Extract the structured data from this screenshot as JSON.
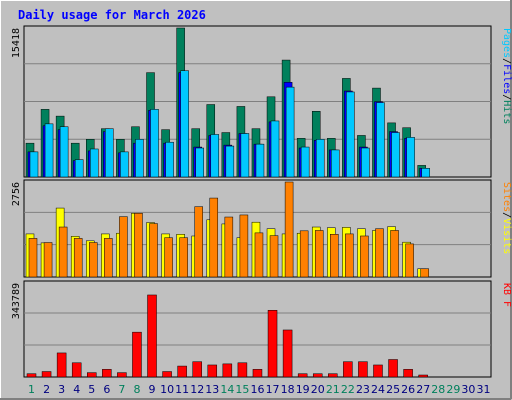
{
  "title": "Daily usage for March 2026",
  "colors": {
    "background": "#c0c0c0",
    "frame": "#ffffff",
    "title": "#0000ff",
    "hits": "#00805c",
    "files": "#0000ff",
    "pages": "#00c8ff",
    "visits": "#ffff00",
    "sites": "#ff8000",
    "kbytes": "#ff0000",
    "weekday_label": "#000080",
    "weekend_label": "#00805c"
  },
  "chart_data": {
    "type": "bar",
    "x": [
      "1",
      "2",
      "3",
      "4",
      "5",
      "6",
      "7",
      "8",
      "9",
      "10",
      "11",
      "12",
      "13",
      "14",
      "15",
      "16",
      "17",
      "18",
      "19",
      "20",
      "21",
      "22",
      "23",
      "24",
      "25",
      "26",
      "27",
      "28",
      "29",
      "30",
      "31"
    ],
    "weekend_days": [
      "1",
      "7",
      "8",
      "14",
      "15",
      "21",
      "22",
      "28",
      "29"
    ],
    "panels": [
      {
        "id": "hits-files-pages",
        "ymax_label": "15418",
        "ylim": [
          0,
          15418
        ],
        "legend": [
          {
            "text": "Pages",
            "key": "pages"
          },
          {
            "text": "Files",
            "key": "files"
          },
          {
            "text": "Hits",
            "key": "hits"
          }
        ],
        "series": [
          {
            "name": "Hits",
            "key": "hits",
            "values": [
              3500,
              7000,
              6300,
              3500,
              3900,
              5000,
              3900,
              5200,
              10800,
              4900,
              15418,
              5000,
              7500,
              4600,
              7300,
              5000,
              8300,
              12100,
              4000,
              6800,
              4000,
              10200,
              4300,
              9200,
              5600,
              5100,
              1200,
              0,
              0,
              0,
              0
            ]
          },
          {
            "name": "Files",
            "key": "files",
            "values": [
              2600,
              5300,
              4900,
              1700,
              2700,
              4700,
              2500,
              3500,
              6900,
              3500,
              10800,
              3100,
              4300,
              3300,
              4500,
              3400,
              5700,
              9800,
              3000,
              3800,
              2800,
              8900,
              3100,
              7800,
              4700,
              4000,
              900,
              0,
              0,
              0,
              0
            ]
          },
          {
            "name": "Pages",
            "key": "pages",
            "values": [
              2600,
              5500,
              5200,
              1800,
              2900,
              5000,
              2600,
              3900,
              7000,
              3600,
              11000,
              3000,
              4400,
              3200,
              4500,
              3400,
              5800,
              9300,
              3100,
              3900,
              2800,
              8800,
              3000,
              7700,
              4600,
              4100,
              900,
              0,
              0,
              0,
              0
            ]
          }
        ]
      },
      {
        "id": "visits-sites",
        "ymax_label": "2756",
        "ylim": [
          0,
          2756
        ],
        "legend": [
          {
            "text": "Sites",
            "key": "sites"
          },
          {
            "text": "/",
            "key": "plain"
          },
          {
            "text": "Visits",
            "key": "visits"
          }
        ],
        "series": [
          {
            "name": "Visits",
            "key": "visits",
            "values": [
              1250,
              990,
              2000,
              1180,
              1050,
              1250,
              1270,
              1850,
              1580,
              1250,
              1240,
              1190,
              1660,
              1540,
              1140,
              1590,
              1400,
              1250,
              1270,
              1450,
              1430,
              1440,
              1400,
              1350,
              1460,
              1010,
              240,
              0,
              0,
              0,
              0
            ]
          },
          {
            "name": "Sites",
            "key": "sites",
            "values": [
              1120,
              1000,
              1450,
              1120,
              1000,
              1120,
              1750,
              1850,
              1550,
              1140,
              1140,
              2040,
              2290,
              1740,
              1800,
              1280,
              1200,
              2756,
              1340,
              1350,
              1240,
              1250,
              1190,
              1400,
              1350,
              960,
              240,
              0,
              0,
              0,
              0
            ]
          }
        ]
      },
      {
        "id": "kbytes",
        "ymax_label": "343789",
        "ylim": [
          0,
          343789
        ],
        "legend": [
          {
            "text": "KB F",
            "key": "kbytes"
          }
        ],
        "series": [
          {
            "name": "KB F",
            "key": "kbytes",
            "values": [
              12000,
              20000,
              88000,
              52000,
              16000,
              28000,
              16000,
              164000,
              300000,
              20000,
              40000,
              56000,
              44000,
              48000,
              52000,
              28000,
              244000,
              172000,
              12000,
              12000,
              12000,
              56000,
              56000,
              44000,
              64000,
              28000,
              6000,
              0,
              0,
              0,
              0
            ]
          }
        ]
      }
    ]
  }
}
